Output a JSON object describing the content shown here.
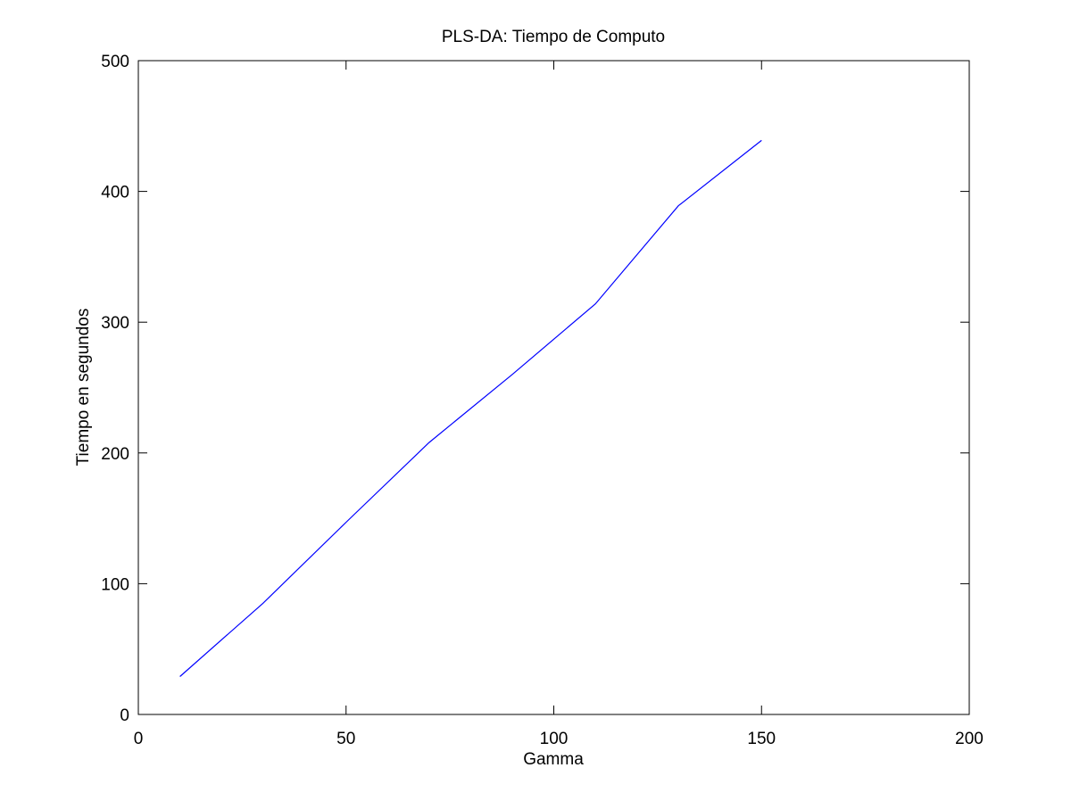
{
  "chart_data": {
    "type": "line",
    "title": "PLS-DA: Tiempo de Computo",
    "xlabel": "Gamma",
    "ylabel": "Tiempo en segundos",
    "xlim": [
      0,
      200
    ],
    "ylim": [
      0,
      500
    ],
    "xticks": [
      0,
      50,
      100,
      150,
      200
    ],
    "yticks": [
      0,
      100,
      200,
      300,
      400,
      500
    ],
    "xtick_labels": [
      "0",
      "50",
      "100",
      "150",
      "200"
    ],
    "ytick_labels": [
      "0",
      "100",
      "200",
      "300",
      "400",
      "500"
    ],
    "grid": false,
    "legend": "none",
    "series": [
      {
        "color": "#0000ff",
        "x": [
          10,
          30,
          50,
          70,
          90,
          110,
          130,
          150
        ],
        "y": [
          29,
          85,
          147,
          208,
          260,
          314,
          389,
          439
        ]
      }
    ]
  }
}
